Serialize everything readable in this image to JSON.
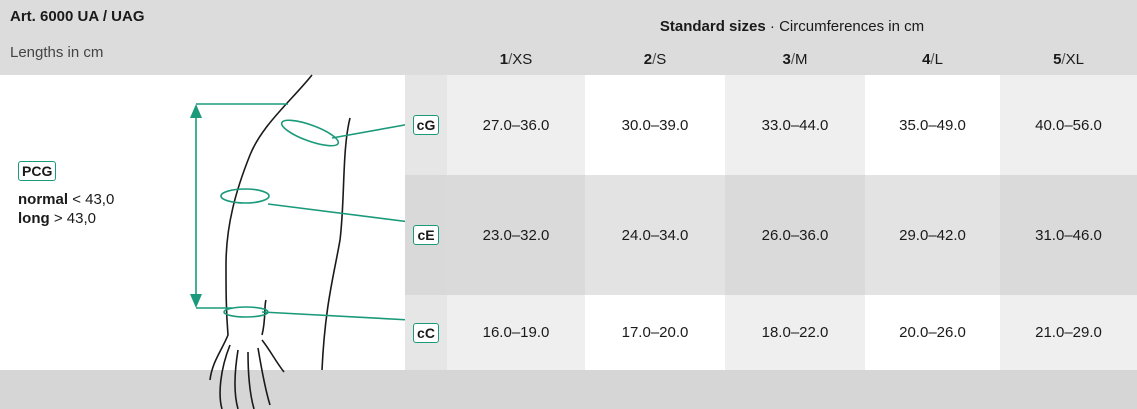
{
  "header": {
    "title": "Art. 6000 UA / UAG",
    "subtitle": "Lengths in cm",
    "group_title": "Standard sizes",
    "group_subtitle": "· Circumferences in cm",
    "separator": "/"
  },
  "columns": [
    {
      "number": "1",
      "size": "XS"
    },
    {
      "number": "2",
      "size": "S"
    },
    {
      "number": "3",
      "size": "M"
    },
    {
      "number": "4",
      "size": "L"
    },
    {
      "number": "5",
      "size": "XL"
    }
  ],
  "legend": {
    "badge": "PCG",
    "items": [
      {
        "label": "normal",
        "value": "< 43,0"
      },
      {
        "label": "long",
        "value": "> 43,0"
      }
    ]
  },
  "rows": [
    {
      "label": "cG",
      "cells": [
        "27.0–36.0",
        "30.0–39.0",
        "33.0–44.0",
        "35.0–49.0",
        "40.0–56.0"
      ]
    },
    {
      "label": "cE",
      "cells": [
        "23.0–32.0",
        "24.0–34.0",
        "26.0–36.0",
        "29.0–42.0",
        "31.0–46.0"
      ]
    },
    {
      "label": "cC",
      "cells": [
        "16.0–19.0",
        "17.0–20.0",
        "18.0–22.0",
        "20.0–26.0",
        "21.0–29.0"
      ]
    }
  ]
}
